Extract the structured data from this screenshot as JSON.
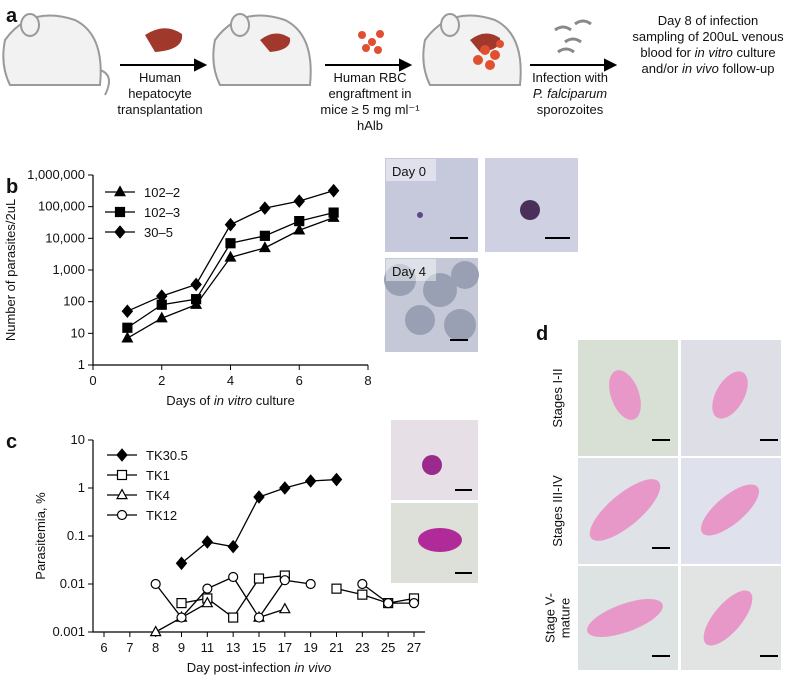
{
  "panel_labels": [
    "a",
    "b",
    "c",
    "d"
  ],
  "schematic": {
    "steps": [
      [
        [
          "Human"
        ],
        [
          "hepatocyte"
        ],
        [
          "transplantation"
        ]
      ],
      [
        [
          "Human RBC"
        ],
        [
          "engraftment in"
        ],
        [
          "mice ≥ 5 mg ml⁻¹"
        ],
        [
          "hAlb"
        ]
      ],
      [
        [
          "Infection with"
        ],
        [
          {
            "text": "P. falciparum",
            "italic": true
          }
        ],
        [
          "sporozoites"
        ]
      ],
      [
        [
          "Day 8 of infection"
        ],
        [
          "sampling of 200uL venous"
        ],
        [
          "blood for ",
          {
            "text": "in vitro",
            "italic": true
          },
          " culture"
        ],
        [
          "and/or ",
          {
            "text": "in vivo",
            "italic": true
          },
          " follow-up"
        ]
      ]
    ]
  },
  "micrographs": {
    "culture_days": [
      "Day 0",
      "Day 4"
    ],
    "stages": [
      [
        "Stages I-II"
      ],
      [
        "Stages III-IV"
      ],
      [
        "Stage V-",
        "mature"
      ]
    ]
  },
  "chart_data": [
    {
      "type": "line",
      "ylabel": [
        "Number of parasites/2uL"
      ],
      "xlabel": [
        "Days of ",
        {
          "text": "in vitro",
          "italic": true
        },
        " culture"
      ],
      "log_y": true,
      "x": [
        1,
        2,
        3,
        4,
        5,
        6,
        7
      ],
      "xlim": [
        0,
        8
      ],
      "xticks": [
        0,
        2,
        4,
        6,
        8
      ],
      "ylim": [
        1,
        1000000
      ],
      "yticks": [
        1,
        10,
        100,
        {
          "value": 1000,
          "label": "1,000"
        },
        {
          "value": 10000,
          "label": "10,000"
        },
        {
          "value": 100000,
          "label": "100,000"
        },
        {
          "value": 1000000,
          "label": "1,000,000"
        }
      ],
      "series": [
        {
          "name": "102–2",
          "color": "#000000",
          "marker": "triangle",
          "marker_fill": "#000000",
          "values": [
            7,
            30,
            80,
            2500,
            5000,
            18000,
            45000
          ]
        },
        {
          "name": "102–3",
          "color": "#000000",
          "marker": "square",
          "marker_fill": "#000000",
          "values": [
            15,
            80,
            120,
            7000,
            12000,
            35000,
            65000
          ]
        },
        {
          "name": "30–5",
          "color": "#000000",
          "marker": "diamond",
          "marker_fill": "#000000",
          "values": [
            50,
            150,
            350,
            27000,
            90000,
            150000,
            320000
          ]
        }
      ]
    },
    {
      "type": "line",
      "ylabel": [
        "Parasitemia, %"
      ],
      "xlabel": [
        "Day post-infection ",
        {
          "text": "in vivo",
          "italic": true
        }
      ],
      "log_y": true,
      "categories": [
        "6",
        "7",
        "8",
        "9",
        "11",
        "13",
        "15",
        "17",
        "19",
        "21",
        "23",
        "25",
        "27"
      ],
      "ylim": [
        0.001,
        10
      ],
      "yticks": [
        0.001,
        0.01,
        0.1,
        1,
        10
      ],
      "series": [
        {
          "name": "TK30.5",
          "color": "#000000",
          "marker": "diamond",
          "marker_fill": "#000000",
          "values": [
            null,
            null,
            null,
            0.027,
            0.075,
            0.06,
            0.65,
            1.0,
            1.4,
            1.5,
            null,
            null,
            null
          ]
        },
        {
          "name": "TK1",
          "color": "#000000",
          "marker": "square",
          "marker_fill": "#ffffff",
          "values": [
            null,
            null,
            null,
            0.004,
            0.005,
            0.002,
            0.013,
            0.015,
            null,
            0.008,
            0.006,
            0.004,
            0.005
          ]
        },
        {
          "name": "TK4",
          "color": "#000000",
          "marker": "triangle",
          "marker_fill": "#ffffff",
          "values": [
            null,
            null,
            0.001,
            0.002,
            0.004,
            null,
            0.002,
            0.003,
            null,
            null,
            null,
            null,
            null
          ]
        },
        {
          "name": "TK12",
          "color": "#000000",
          "marker": "circle",
          "marker_fill": "#ffffff",
          "values": [
            null,
            null,
            0.01,
            0.002,
            0.008,
            0.014,
            0.002,
            0.012,
            0.01,
            null,
            0.01,
            0.004,
            0.004
          ]
        }
      ]
    }
  ]
}
